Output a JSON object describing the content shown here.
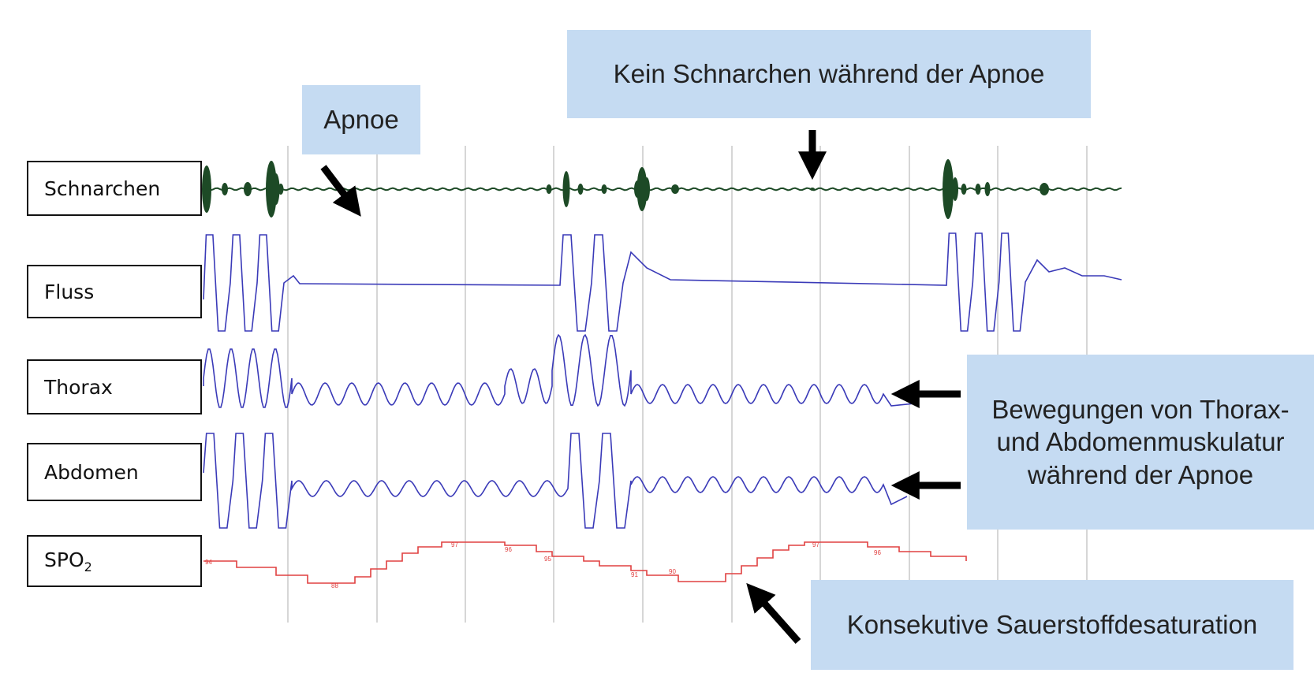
{
  "channels": [
    {
      "id": "snore",
      "label": "Schnarchen",
      "color": "#1d4a26"
    },
    {
      "id": "flow",
      "label": "Fluss",
      "color": "#3a3ab8"
    },
    {
      "id": "thorax",
      "label": "Thorax",
      "color": "#3a3ab8"
    },
    {
      "id": "abdomen",
      "label": "Abdomen",
      "color": "#3a3ab8"
    },
    {
      "id": "spo2",
      "label_main": "SPO",
      "label_sub": "2",
      "color": "#e04040"
    }
  ],
  "annotations": {
    "apnoe": "Apnoe",
    "no_snoring": "Kein Schnarchen während der Apnoe",
    "movements_line1": "Bewegungen von Thorax-",
    "movements_line2": "und Abdomenmuskulatur",
    "movements_line3": "während der Apnoe",
    "desaturation": "Konsekutive Sauerstoffdesaturation"
  },
  "spo2_values": [
    "94",
    "88",
    "97",
    "96",
    "95",
    "91",
    "90",
    "97",
    "96"
  ],
  "colors": {
    "callout_bg": "#c5dbf2",
    "grid": "#cccccc",
    "snore_trace": "#1d4a26",
    "resp_trace": "#3a3ab8",
    "spo2_trace": "#e04040"
  }
}
